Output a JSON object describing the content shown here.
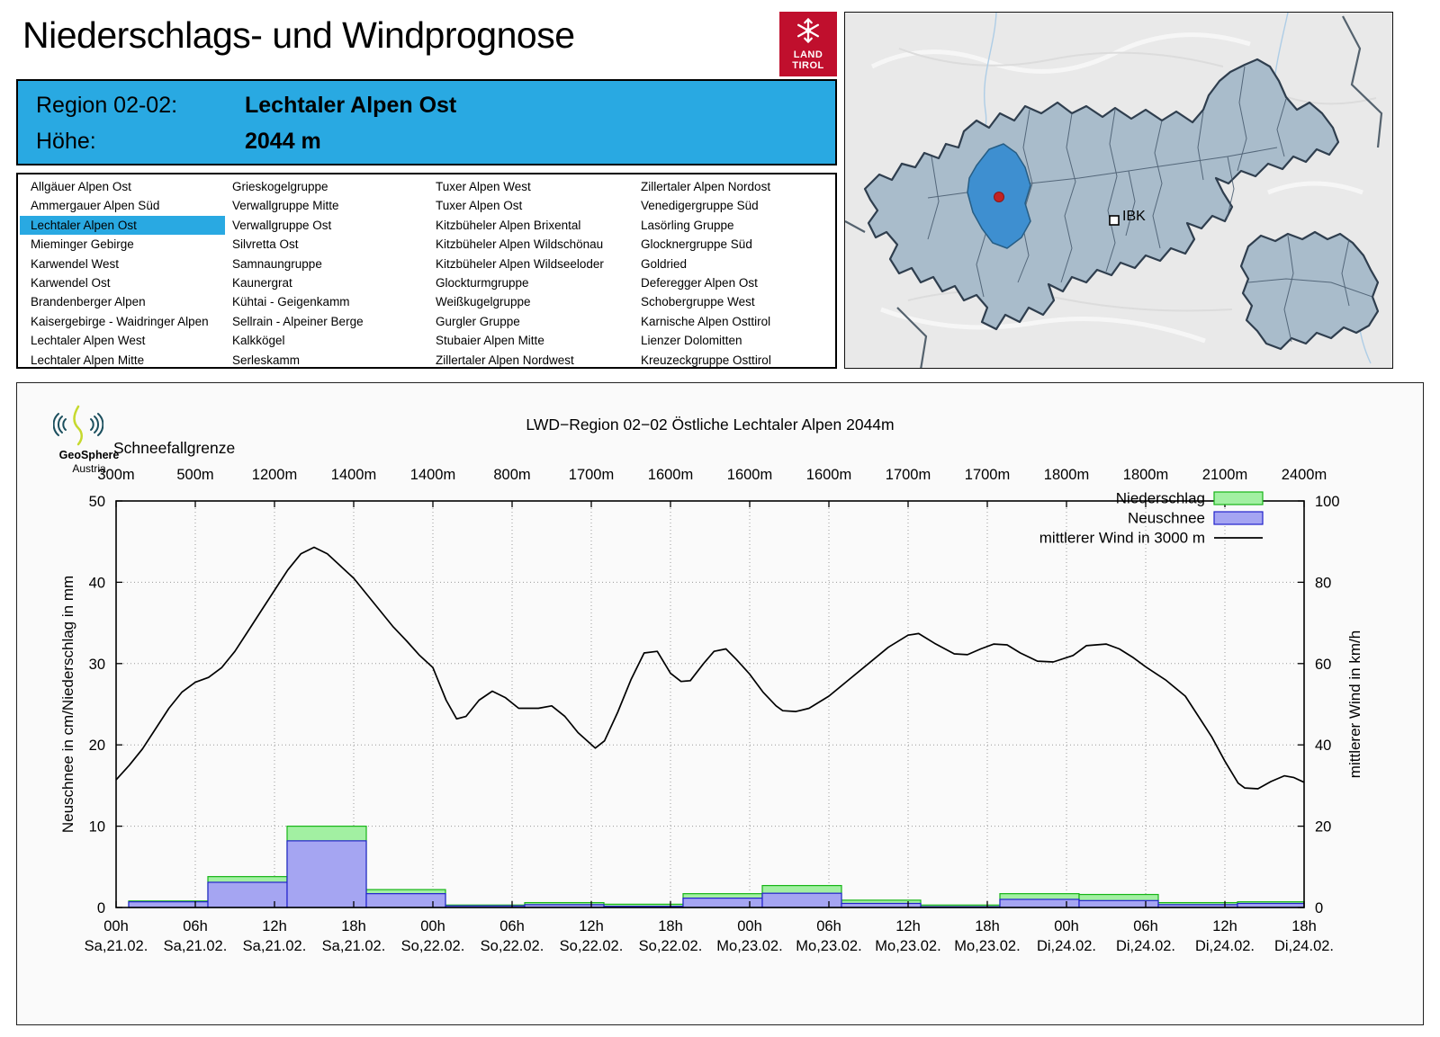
{
  "page": {
    "title": "Niederschlags- und Windprognose"
  },
  "logo": {
    "line1": "LAND",
    "line2": "TIROL",
    "color": "#c00f2d"
  },
  "region_box": {
    "region_label": "Region 02-02:",
    "region_value": "Lechtaler Alpen Ost",
    "altitude_label": "Höhe:",
    "altitude_value": "2044 m",
    "bg": "#29a9e2"
  },
  "region_list": {
    "selected": "Lechtaler Alpen Ost",
    "highlight": "#29a9e2",
    "columns": [
      [
        "Allgäuer Alpen Ost",
        "Ammergauer Alpen Süd",
        "Lechtaler Alpen Ost",
        "Mieminger Gebirge",
        "Karwendel West",
        "Karwendel Ost",
        "Brandenberger Alpen",
        "Kaisergebirge - Waidringer Alpen",
        "Lechtaler Alpen West",
        "Lechtaler Alpen Mitte"
      ],
      [
        "Grieskogelgruppe",
        "Verwallgruppe Mitte",
        "Verwallgruppe Ost",
        "Silvretta Ost",
        "Samnaungruppe",
        "Kaunergrat",
        "Kühtai - Geigenkamm",
        "Sellrain - Alpeiner Berge",
        "Kalkkögel",
        "Serleskamm"
      ],
      [
        "Tuxer Alpen West",
        "Tuxer Alpen Ost",
        "Kitzbüheler Alpen Brixental",
        "Kitzbüheler Alpen Wildschönau",
        "Kitzbüheler Alpen Wildseeloder",
        "Glockturmgruppe",
        "Weißkugelgruppe",
        "Gurgler Gruppe",
        "Stubaier Alpen Mitte",
        "Zillertaler Alpen Nordwest"
      ],
      [
        "Zillertaler Alpen Nordost",
        "Venedigergruppe Süd",
        "Lasörling Gruppe",
        "Glocknergruppe Süd",
        "Goldried",
        "Deferegger Alpen Ost",
        "Schobergruppe West",
        "Karnische Alpen Osttirol",
        "Lienzer Dolomitten",
        "Kreuzeckgruppe Osttirol"
      ]
    ]
  },
  "map": {
    "label_ibk": "IBK"
  },
  "brand": {
    "name": "GeoSphere",
    "sub": "Austria"
  },
  "chart_data": {
    "type": "bar+line",
    "title": "LWD−Region 02−02 Östliche Lechtaler Alpen 2044m",
    "snowline": {
      "label": "Schneefallgrenze",
      "values": [
        "300m",
        "500m",
        "1200m",
        "1400m",
        "1400m",
        "800m",
        "1700m",
        "1600m",
        "1600m",
        "1600m",
        "1700m",
        "1700m",
        "1800m",
        "1800m",
        "2100m",
        "2400m"
      ]
    },
    "ylabel_left": "Neuschnee in cm/Niederschlag in mm",
    "ylabel_right": "mittlerer Wind in km/h",
    "ylim_left": [
      0,
      50
    ],
    "ylim_right": [
      0,
      100
    ],
    "yticks_left": [
      0,
      10,
      20,
      30,
      40,
      50
    ],
    "yticks_right": [
      0,
      20,
      40,
      60,
      80,
      100
    ],
    "hours_span": 90,
    "grid": "dotted",
    "legend_position": "top-right inside",
    "x_ticks": [
      {
        "time": "00h",
        "date": "Sa,21.02."
      },
      {
        "time": "06h",
        "date": "Sa,21.02."
      },
      {
        "time": "12h",
        "date": "Sa,21.02."
      },
      {
        "time": "18h",
        "date": "Sa,21.02."
      },
      {
        "time": "00h",
        "date": "So,22.02."
      },
      {
        "time": "06h",
        "date": "So,22.02."
      },
      {
        "time": "12h",
        "date": "So,22.02."
      },
      {
        "time": "18h",
        "date": "So,22.02."
      },
      {
        "time": "00h",
        "date": "Mo,23.02."
      },
      {
        "time": "06h",
        "date": "Mo,23.02."
      },
      {
        "time": "12h",
        "date": "Mo,23.02."
      },
      {
        "time": "18h",
        "date": "Mo,23.02."
      },
      {
        "time": "00h",
        "date": "Di,24.02."
      },
      {
        "time": "06h",
        "date": "Di,24.02."
      },
      {
        "time": "12h",
        "date": "Di,24.02."
      },
      {
        "time": "18h",
        "date": "Di,24.02."
      }
    ],
    "series": [
      {
        "name": "Niederschlag",
        "type": "bar",
        "unit": "mm",
        "axis": "left",
        "fill": "#a2f0a2",
        "border": "#17b517",
        "values": [
          0.8,
          3.8,
          10.0,
          2.2,
          0.3,
          0.6,
          0.4,
          1.7,
          2.7,
          0.9,
          0.3,
          1.7,
          1.6,
          0.6,
          0.7
        ]
      },
      {
        "name": "Neuschnee",
        "type": "bar",
        "unit": "cm",
        "axis": "left",
        "fill": "#a5a5f2",
        "border": "#2222cc",
        "values": [
          0.7,
          3.1,
          8.2,
          1.7,
          0.2,
          0.35,
          0.15,
          1.15,
          1.75,
          0.5,
          0.1,
          1.0,
          0.85,
          0.35,
          0.5
        ]
      },
      {
        "name": "mittlerer Wind in 3000 m",
        "type": "line",
        "unit": "km/h",
        "axis": "right",
        "color": "#000000",
        "points": [
          [
            0,
            31.4
          ],
          [
            1,
            35
          ],
          [
            2,
            39
          ],
          [
            3,
            44
          ],
          [
            4,
            49
          ],
          [
            5,
            53
          ],
          [
            6,
            55.4
          ],
          [
            7,
            56.6
          ],
          [
            8,
            59
          ],
          [
            9,
            63
          ],
          [
            10,
            68
          ],
          [
            11,
            73
          ],
          [
            12,
            78
          ],
          [
            13,
            83
          ],
          [
            14,
            87
          ],
          [
            15,
            88.6
          ],
          [
            16,
            87
          ],
          [
            17,
            84
          ],
          [
            18,
            81
          ],
          [
            19,
            77
          ],
          [
            20,
            73
          ],
          [
            21,
            69
          ],
          [
            22,
            65.6
          ],
          [
            23,
            62
          ],
          [
            24,
            59
          ],
          [
            25,
            51
          ],
          [
            25.8,
            46.4
          ],
          [
            26.5,
            47
          ],
          [
            27.5,
            51
          ],
          [
            28.5,
            53.2
          ],
          [
            29.5,
            51.6
          ],
          [
            30.5,
            49
          ],
          [
            32,
            49
          ],
          [
            33,
            49.6
          ],
          [
            34,
            47
          ],
          [
            35,
            43
          ],
          [
            36.3,
            39.2
          ],
          [
            37,
            41
          ],
          [
            38,
            48
          ],
          [
            39,
            56
          ],
          [
            40,
            62.6
          ],
          [
            41,
            63
          ],
          [
            42,
            57.6
          ],
          [
            42.8,
            55.6
          ],
          [
            43.5,
            55.8
          ],
          [
            44.5,
            60
          ],
          [
            45.3,
            63
          ],
          [
            46.2,
            63.6
          ],
          [
            47,
            61
          ],
          [
            48,
            57.4
          ],
          [
            49,
            53
          ],
          [
            50,
            49.6
          ],
          [
            50.5,
            48.4
          ],
          [
            51.5,
            48.2
          ],
          [
            52.5,
            49
          ],
          [
            54,
            52
          ],
          [
            55.5,
            56
          ],
          [
            57,
            60
          ],
          [
            58.5,
            64
          ],
          [
            60,
            67
          ],
          [
            60.8,
            67.4
          ],
          [
            62,
            65
          ],
          [
            63.5,
            62.4
          ],
          [
            64.5,
            62.2
          ],
          [
            65.5,
            63.6
          ],
          [
            66.5,
            64.8
          ],
          [
            67.5,
            64.6
          ],
          [
            68.5,
            62.6
          ],
          [
            69.8,
            60.6
          ],
          [
            71,
            60.4
          ],
          [
            72.5,
            62
          ],
          [
            73.5,
            64.4
          ],
          [
            75,
            64.8
          ],
          [
            76,
            63.6
          ],
          [
            77,
            61.6
          ],
          [
            78,
            59.2
          ],
          [
            79.5,
            56
          ],
          [
            81,
            52
          ],
          [
            82,
            47
          ],
          [
            83,
            42
          ],
          [
            84,
            36
          ],
          [
            85,
            30.6
          ],
          [
            85.5,
            29.4
          ],
          [
            86.5,
            29.2
          ],
          [
            87.5,
            31
          ],
          [
            88.5,
            32.4
          ],
          [
            89.2,
            32
          ],
          [
            90,
            30.8
          ]
        ]
      }
    ]
  }
}
